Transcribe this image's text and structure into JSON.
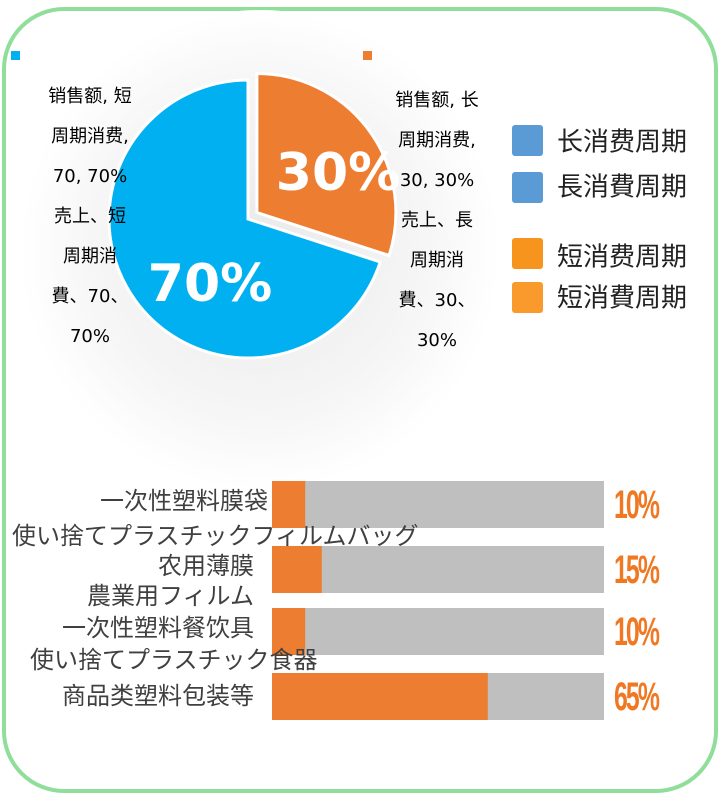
{
  "chart_data": [
    {
      "type": "pie",
      "categories": [
        "长周期消费",
        "短周期消费"
      ],
      "values": [
        30,
        70
      ],
      "value_labels": [
        "30%",
        "70%"
      ],
      "colors": [
        "#ed7d31",
        "#00b0f0"
      ],
      "data_labels": [
        [
          "销售额, 长",
          "周期消费,",
          "30, 30%",
          "売上、長",
          "周期消",
          "費、30、",
          "30%"
        ],
        [
          "销售额, 短",
          "周期消费,",
          "70, 70%",
          "売上、短",
          "周期消",
          "費、70、",
          "70%"
        ]
      ],
      "legend": [
        {
          "name": "长消费周期",
          "color": "#5b9bd5"
        },
        {
          "name": "長消費周期",
          "color": "#5b9bd5"
        },
        {
          "name": "短消费周期",
          "color": "#f7941d"
        },
        {
          "name": "短消費周期",
          "color": "#fb9a2c"
        }
      ]
    },
    {
      "type": "bar",
      "orientation": "horizontal",
      "categories": [
        "一次性塑料膜袋",
        "农用薄膜",
        "一次性塑料餐饮具",
        "商品类塑料包装等"
      ],
      "categories_ja": [
        "使い捨てプラスチックフィルムバッグ",
        "農業用フィルム",
        "使い捨てプラスチック食器",
        null
      ],
      "values": [
        10,
        15,
        10,
        65
      ],
      "value_labels": [
        "10%",
        "15%",
        "10%",
        "65%"
      ],
      "xlim": [
        0,
        100
      ],
      "color": "#ed7d31",
      "track_color": "#bfbfbf",
      "label_color": "#f07822"
    }
  ]
}
